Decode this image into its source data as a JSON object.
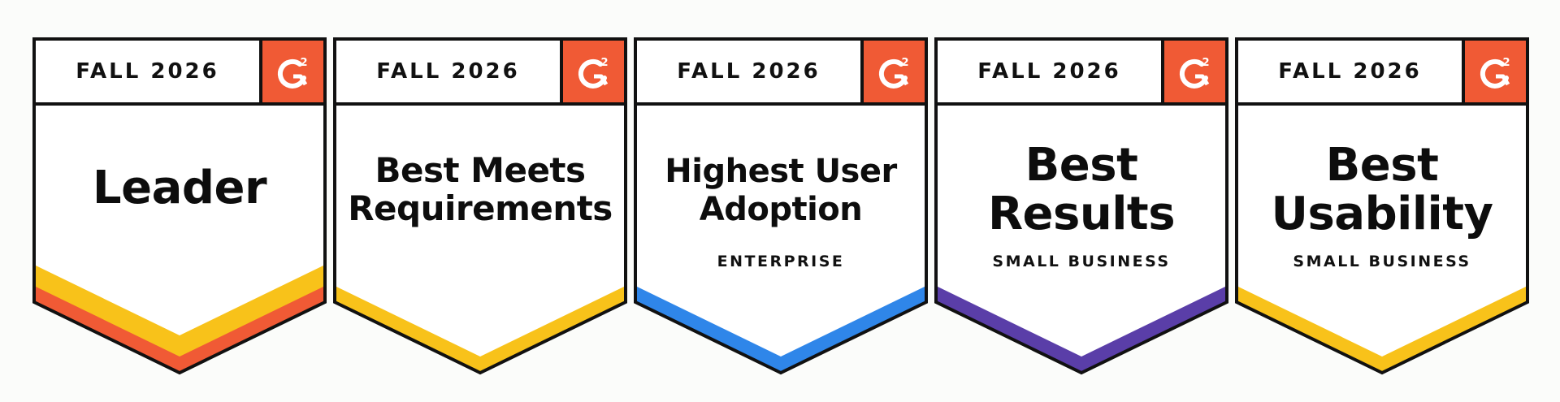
{
  "colors": {
    "g2_red": "#f05a35",
    "yellow": "#f8c21a",
    "blue": "#2f86e9",
    "purple": "#5a3ea8"
  },
  "badges": [
    {
      "season": "FALL 2026",
      "logo": "G2",
      "title_lines": [
        "Leader"
      ],
      "subtitle": "",
      "stripes": [
        "yellow",
        "red"
      ]
    },
    {
      "season": "FALL 2026",
      "logo": "G2",
      "title_lines": [
        "Best Meets",
        "Requirements"
      ],
      "subtitle": "",
      "stripes": [
        "yellow"
      ]
    },
    {
      "season": "FALL 2026",
      "logo": "G2",
      "title_lines": [
        "Highest User",
        "Adoption"
      ],
      "subtitle": "ENTERPRISE",
      "stripes": [
        "blue"
      ]
    },
    {
      "season": "FALL 2026",
      "logo": "G2",
      "title_lines": [
        "Best",
        "Results"
      ],
      "subtitle": "SMALL BUSINESS",
      "stripes": [
        "purple"
      ]
    },
    {
      "season": "FALL 2026",
      "logo": "G2",
      "title_lines": [
        "Best",
        "Usability"
      ],
      "subtitle": "SMALL BUSINESS",
      "stripes": [
        "yellow"
      ]
    }
  ]
}
